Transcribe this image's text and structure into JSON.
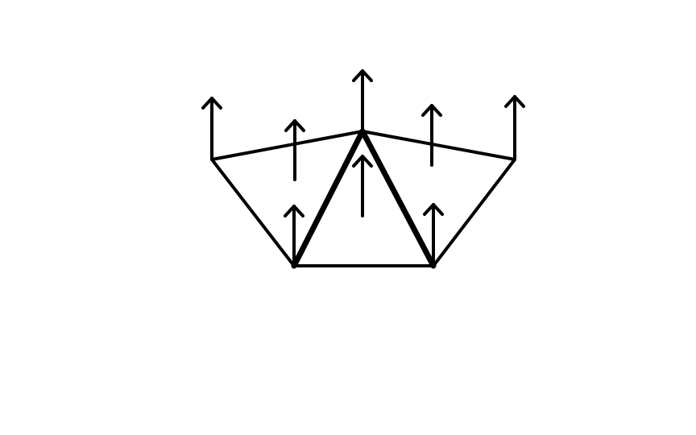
{
  "diagram": {
    "description_kind": "mesh-normals",
    "stroke_color": "#000000",
    "background_color": "#ffffff",
    "faces": [
      {
        "name": "center-triangle-face",
        "emphasis": "bold"
      },
      {
        "name": "left-quad-face",
        "emphasis": "normal"
      },
      {
        "name": "right-quad-face",
        "emphasis": "normal"
      }
    ],
    "vertex_normals": [
      "left-outer",
      "top-apex",
      "right-outer",
      "bottom-left",
      "bottom-right"
    ],
    "face_normals": [
      "left-quad",
      "center-triangle",
      "right-quad"
    ],
    "arrow_direction": "up"
  }
}
